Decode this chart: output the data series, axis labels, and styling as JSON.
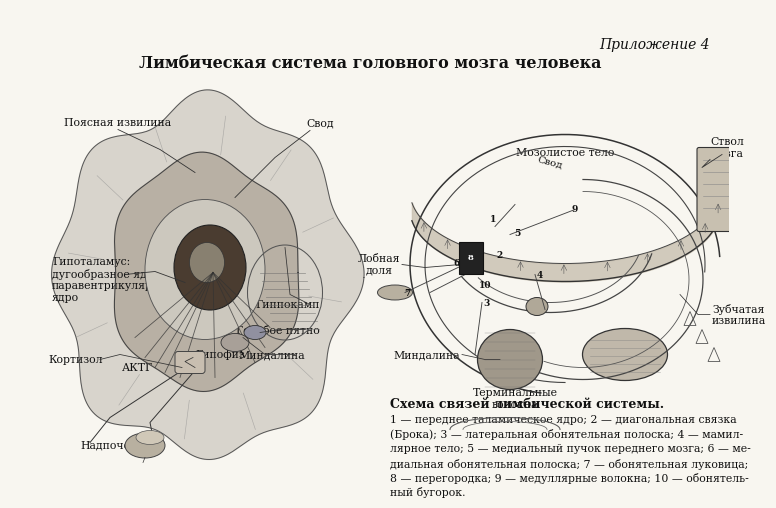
{
  "title": "Лимбическая система головного мозга человека",
  "appendix_label": "Приложение 4",
  "bg_color": "#f8f6f0",
  "text_color": "#111111",
  "schema_title": "Схема связей лимбической системы.",
  "schema_text_line1": "1 — переднее таламическое ядро; 2 — диагональная связка",
  "schema_text_line2": "(Брока); 3 — латеральная обонятельная полоска; 4 — мамил-",
  "schema_text_line3": "лярное тело; 5 — медиальный пучок переднего мозга; 6 — ме-",
  "schema_text_line4": "диальная обонятельная полоска; 7 — обонятельная луковица;",
  "schema_text_line5": "8 — перегородка; 9 — медуллярные волокна; 10 — обонятель-",
  "schema_text_line6": "ный бугорок."
}
